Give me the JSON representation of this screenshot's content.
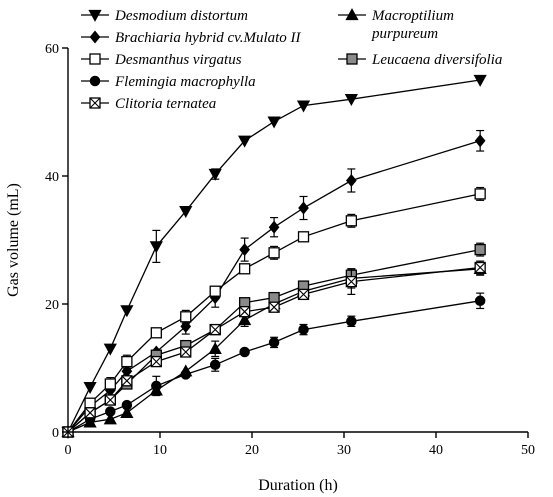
{
  "chart_data": {
    "type": "line",
    "xlabel": "Duration (h)",
    "ylabel": "Gas volume (mL)",
    "xlim": [
      0,
      50
    ],
    "ylim": [
      0,
      60
    ],
    "xticks": [
      0,
      10,
      20,
      30,
      40,
      50
    ],
    "yticks": [
      0,
      20,
      40,
      60
    ],
    "grid": false,
    "legend_position": "top-left",
    "series": [
      {
        "name": "Desmodium distortum",
        "marker": "triangle-down",
        "x": [
          0,
          2.4,
          4.6,
          6.4,
          9.6,
          12.8,
          16,
          19.2,
          22.4,
          25.6,
          30.8,
          44.8
        ],
        "y": [
          0,
          7,
          13,
          19,
          29,
          34.5,
          40.3,
          45.5,
          48.5,
          51,
          52,
          55
        ],
        "err": [
          0,
          0,
          0,
          0,
          2.5,
          0,
          0.8,
          0,
          0,
          0,
          0,
          0
        ]
      },
      {
        "name": "Brachiaria hybrid cv.Mulato II",
        "marker": "diamond",
        "x": [
          0,
          2.4,
          4.6,
          6.4,
          9.6,
          12.8,
          16,
          19.2,
          22.4,
          25.6,
          30.8,
          44.8
        ],
        "y": [
          0,
          4,
          6.5,
          9.5,
          12.5,
          16.5,
          21,
          28.5,
          32,
          35,
          39.3,
          45.5
        ],
        "err": [
          0,
          0,
          0,
          0,
          0,
          1.2,
          1.5,
          1.8,
          1.5,
          1.8,
          1.8,
          1.6
        ]
      },
      {
        "name": "Desmanthus virgatus",
        "marker": "square-open",
        "x": [
          0,
          2.4,
          4.6,
          6.4,
          9.6,
          12.8,
          16,
          19.2,
          22.4,
          25.6,
          30.8,
          44.8
        ],
        "y": [
          0,
          4.5,
          7.5,
          11,
          15.5,
          18,
          22,
          25.5,
          28,
          30.5,
          33,
          37.2
        ],
        "err": [
          0,
          0,
          1,
          1,
          0,
          1,
          0,
          0,
          1,
          0,
          1,
          1
        ]
      },
      {
        "name": "Flemingia macrophylla",
        "marker": "circle",
        "x": [
          0,
          2.4,
          4.6,
          6.4,
          9.6,
          12.8,
          16,
          19.2,
          22.4,
          25.6,
          30.8,
          44.8
        ],
        "y": [
          0,
          2,
          3.2,
          4.2,
          7.2,
          9,
          10.5,
          12.5,
          14,
          16,
          17.3,
          20.5
        ],
        "err": [
          0,
          0,
          0,
          0,
          1.5,
          0,
          1,
          0,
          0.8,
          0.8,
          0.8,
          1.2
        ]
      },
      {
        "name": "Macroptilium purpureum",
        "marker": "triangle-up",
        "x": [
          0,
          2.4,
          4.6,
          6.4,
          9.6,
          12.8,
          16,
          19.2,
          22.4,
          25.6,
          30.8,
          44.8
        ],
        "y": [
          0,
          1.5,
          2,
          3,
          6.5,
          9.5,
          13,
          17.5,
          20,
          22,
          24,
          25.5
        ],
        "err": [
          0,
          0,
          0,
          0,
          0,
          0,
          1.2,
          1,
          1,
          1,
          1.5,
          1
        ]
      },
      {
        "name": "Leucaena diversifolia",
        "marker": "square-gray",
        "x": [
          0,
          2.4,
          4.6,
          6.4,
          9.6,
          12.8,
          16,
          19.2,
          22.4,
          25.6,
          30.8,
          44.8
        ],
        "y": [
          0,
          3,
          5,
          7.5,
          12,
          13.5,
          16,
          20.2,
          21,
          22.8,
          24.5,
          28.5
        ],
        "err": [
          0,
          0,
          0,
          0,
          0,
          0,
          0,
          0,
          0,
          0,
          0,
          1
        ]
      },
      {
        "name": "Clitoria ternatea",
        "marker": "square-x",
        "x": [
          0,
          2.4,
          4.6,
          6.4,
          9.6,
          12.8,
          16,
          19.2,
          22.4,
          25.6,
          30.8,
          44.8
        ],
        "y": [
          0,
          3,
          5,
          8,
          11,
          12.5,
          16,
          18.8,
          19.5,
          21.5,
          23.5,
          25.7
        ],
        "err": [
          0,
          0,
          0,
          0,
          0,
          0,
          0,
          0,
          0,
          0,
          2,
          1
        ]
      }
    ],
    "legend": [
      {
        "label": "Desmodium distortum",
        "marker": "triangle-down"
      },
      {
        "label": "Brachiaria hybrid cv.Mulato II",
        "marker": "diamond"
      },
      {
        "label": "Desmanthus virgatus",
        "marker": "square-open"
      },
      {
        "label": "Flemingia macrophylla",
        "marker": "circle"
      },
      {
        "label": "Clitoria ternatea",
        "marker": "square-x"
      },
      {
        "label": "Macroptilium",
        "label2": "purpureum",
        "marker": "triangle-up"
      },
      {
        "label": "Leucaena diversifolia",
        "marker": "square-gray"
      }
    ]
  }
}
